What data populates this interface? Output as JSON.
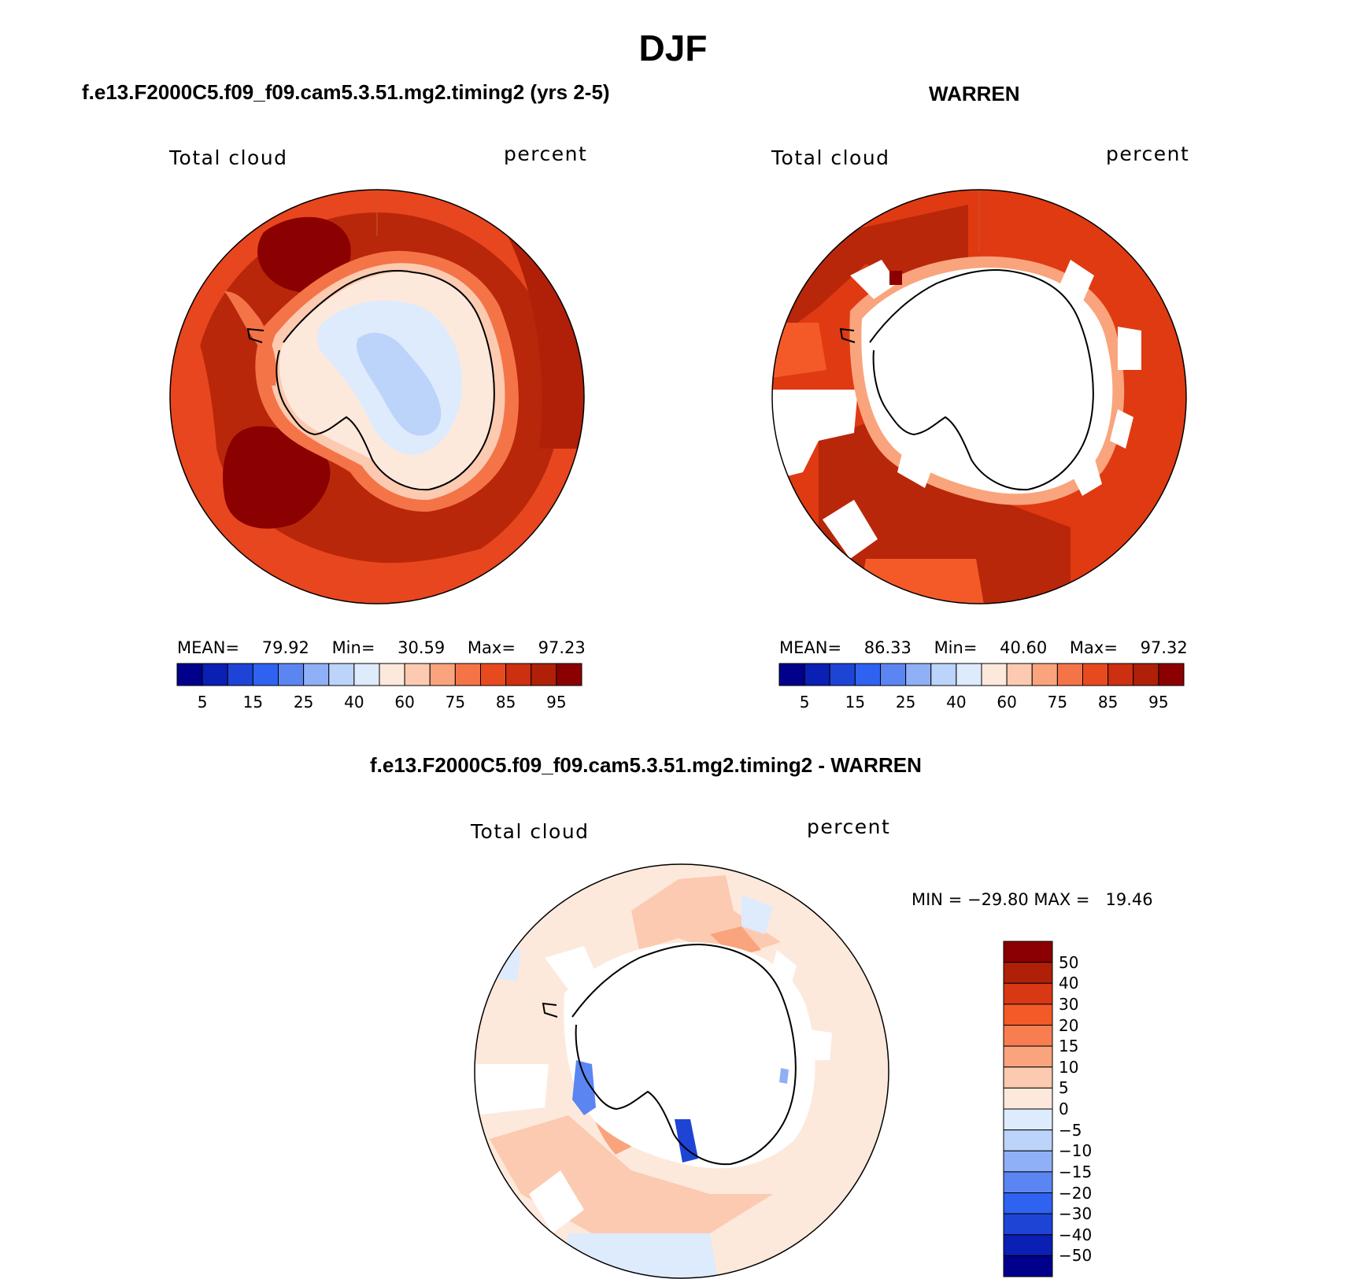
{
  "page": {
    "title": "DJF"
  },
  "panels": [
    {
      "id": "model",
      "header": "f.e13.F2000C5.f09_f09.cam5.3.51.mg2.timing2 (yrs 2-5)",
      "field": "Total cloud",
      "units": "percent",
      "mean_label": "MEAN=",
      "mean_value": "79.92",
      "min_label": "Min=",
      "min_value": "30.59",
      "max_label": "Max=",
      "max_value": "97.23"
    },
    {
      "id": "obs",
      "header": "WARREN",
      "field": "Total cloud",
      "units": "percent",
      "mean_label": "MEAN=",
      "mean_value": "86.33",
      "min_label": "Min=",
      "min_value": "40.60",
      "max_label": "Max=",
      "max_value": "97.32"
    },
    {
      "id": "diff",
      "header": "f.e13.F2000C5.f09_f09.cam5.3.51.mg2.timing2 - WARREN",
      "field": "Total cloud",
      "units": "percent",
      "minmax_text": "MIN = −29.80 MAX =   19.46"
    }
  ],
  "abs_colorbar": {
    "levels": [
      5,
      10,
      15,
      20,
      25,
      30,
      40,
      50,
      60,
      70,
      75,
      80,
      85,
      90,
      95
    ],
    "tick_labels": [
      "5",
      "15",
      "25",
      "40",
      "60",
      "75",
      "85",
      "95"
    ],
    "colors": [
      "#00008b",
      "#0a1fb4",
      "#1e44d6",
      "#2f62f0",
      "#5b86f2",
      "#8fb0f6",
      "#bcd3fa",
      "#ddebfc",
      "#fde9dc",
      "#fccab0",
      "#f9a47c",
      "#f47448",
      "#e84a20",
      "#cc3010",
      "#b02008",
      "#8b0000"
    ]
  },
  "diff_colorbar": {
    "tick_labels": [
      "50",
      "40",
      "30",
      "20",
      "15",
      "10",
      "5",
      "0",
      "−5",
      "−10",
      "−15",
      "−20",
      "−30",
      "−40",
      "−50"
    ],
    "colors": [
      "#8b0000",
      "#b02008",
      "#d83814",
      "#f45a28",
      "#f87e52",
      "#f9a47c",
      "#fccab0",
      "#fde9dc",
      "#ddebfc",
      "#bcd3fa",
      "#8fb0f6",
      "#5b86f2",
      "#2f62f0",
      "#1e44d6",
      "#0a1fb4",
      "#00008b"
    ]
  }
}
